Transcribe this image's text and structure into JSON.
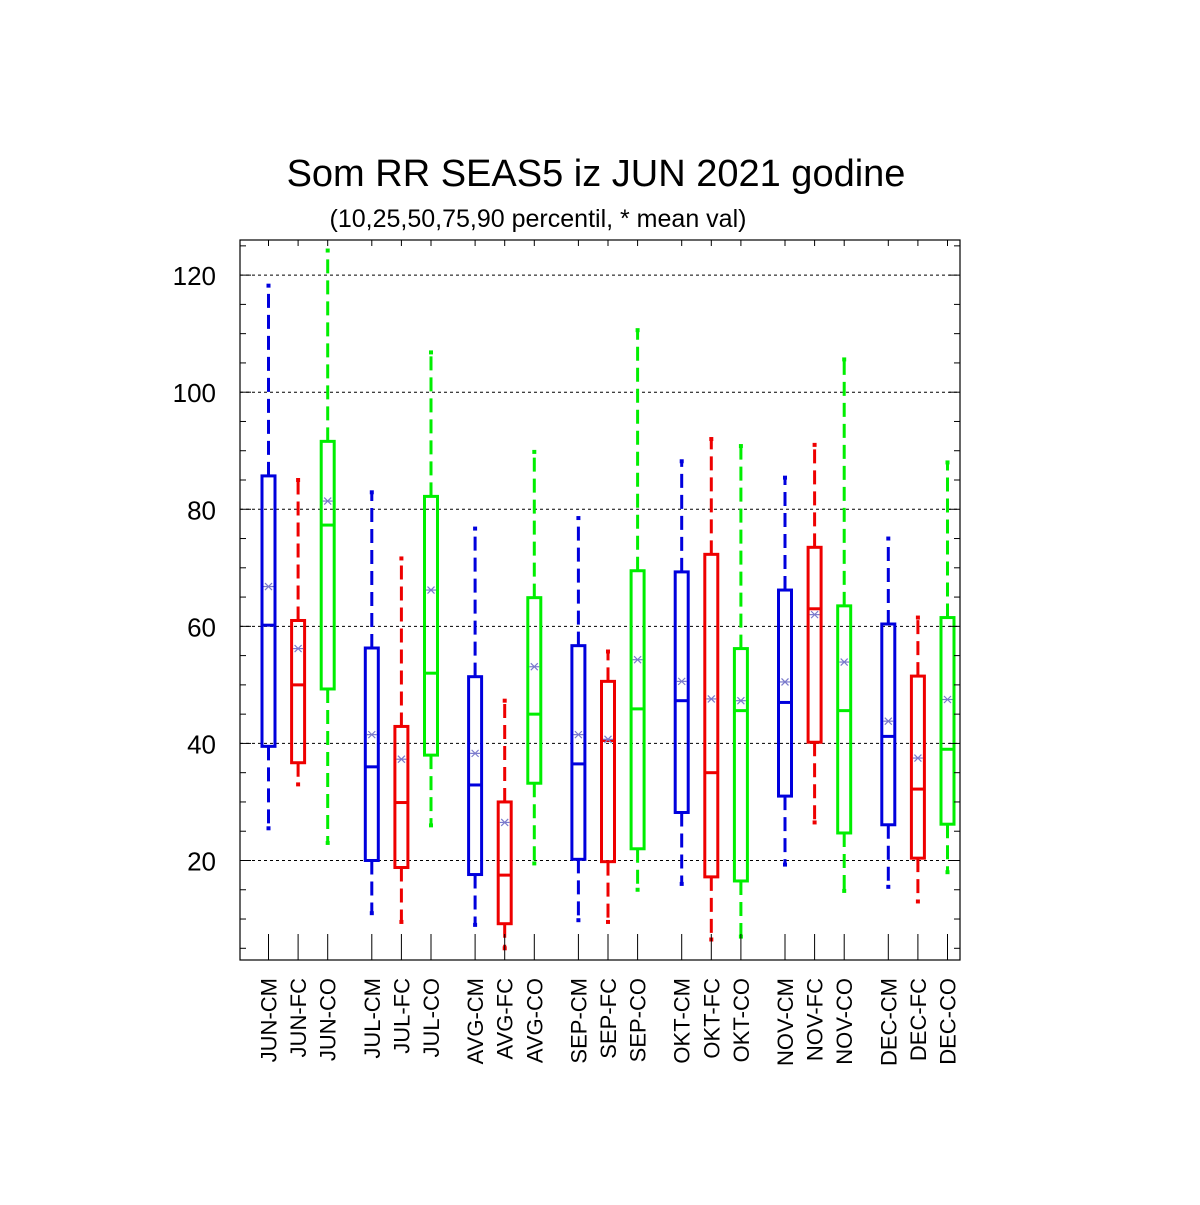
{
  "chart_data": {
    "type": "boxplot",
    "title": "Som RR SEAS5 iz JUN 2021 godine",
    "subtitle": "(10,25,50,75,90 percentil, * mean val)",
    "ylim": [
      3,
      126
    ],
    "yticks": [
      20,
      40,
      60,
      80,
      100,
      120
    ],
    "ytick_labels": [
      "20",
      "40",
      "60",
      "80",
      "100",
      "120"
    ],
    "grid": "horizontal dashed at major ticks",
    "series_colors": {
      "CM": "#0000dd",
      "FC": "#ee0000",
      "CO": "#00ee00"
    },
    "boxes": [
      {
        "label": "JUN-CM",
        "group": "CM",
        "p10": 25.5,
        "p25": 39.5,
        "median": 60.2,
        "p75": 85.7,
        "p90": 118.2,
        "mean": 66.8
      },
      {
        "label": "JUN-FC",
        "group": "FC",
        "p10": 33.0,
        "p25": 36.7,
        "median": 50.0,
        "p75": 61.0,
        "p90": 85.0,
        "mean": 56.2
      },
      {
        "label": "JUN-CO",
        "group": "CO",
        "p10": 23.0,
        "p25": 49.3,
        "median": 77.3,
        "p75": 91.6,
        "p90": 124.2,
        "mean": 81.4
      },
      {
        "label": "JUL-CM",
        "group": "CM",
        "p10": 11.0,
        "p25": 20.0,
        "median": 36.0,
        "p75": 56.3,
        "p90": 82.9,
        "mean": 41.5
      },
      {
        "label": "JUL-FC",
        "group": "FC",
        "p10": 9.5,
        "p25": 18.8,
        "median": 29.9,
        "p75": 42.9,
        "p90": 71.6,
        "mean": 37.3
      },
      {
        "label": "JUL-CO",
        "group": "CO",
        "p10": 26.0,
        "p25": 38.0,
        "median": 52.0,
        "p75": 82.2,
        "p90": 106.8,
        "mean": 66.2
      },
      {
        "label": "AVG-CM",
        "group": "CM",
        "p10": 9.0,
        "p25": 17.6,
        "median": 32.9,
        "p75": 51.4,
        "p90": 76.7,
        "mean": 38.3
      },
      {
        "label": "AVG-FC",
        "group": "FC",
        "p10": 5.0,
        "p25": 9.2,
        "median": 17.5,
        "p75": 30.0,
        "p90": 47.3,
        "mean": 26.5
      },
      {
        "label": "AVG-CO",
        "group": "CO",
        "p10": 19.5,
        "p25": 33.2,
        "median": 45.0,
        "p75": 64.9,
        "p90": 89.8,
        "mean": 53.1
      },
      {
        "label": "SEP-CM",
        "group": "CM",
        "p10": 9.8,
        "p25": 20.2,
        "median": 36.5,
        "p75": 56.7,
        "p90": 78.5,
        "mean": 41.5
      },
      {
        "label": "SEP-FC",
        "group": "FC",
        "p10": 9.5,
        "p25": 19.8,
        "median": 40.5,
        "p75": 50.6,
        "p90": 55.7,
        "mean": 40.7
      },
      {
        "label": "SEP-CO",
        "group": "CO",
        "p10": 15.0,
        "p25": 22.0,
        "median": 45.9,
        "p75": 69.5,
        "p90": 110.6,
        "mean": 54.3
      },
      {
        "label": "OKT-CM",
        "group": "CM",
        "p10": 16.0,
        "p25": 28.2,
        "median": 47.3,
        "p75": 69.3,
        "p90": 88.2,
        "mean": 50.6
      },
      {
        "label": "OKT-FC",
        "group": "FC",
        "p10": 6.5,
        "p25": 17.2,
        "median": 35.0,
        "p75": 72.3,
        "p90": 92.0,
        "mean": 47.6
      },
      {
        "label": "OKT-CO",
        "group": "CO",
        "p10": 7.0,
        "p25": 16.5,
        "median": 45.6,
        "p75": 56.2,
        "p90": 90.8,
        "mean": 47.3
      },
      {
        "label": "NOV-CM",
        "group": "CM",
        "p10": 19.3,
        "p25": 31.0,
        "median": 47.0,
        "p75": 66.2,
        "p90": 85.4,
        "mean": 50.5
      },
      {
        "label": "NOV-FC",
        "group": "FC",
        "p10": 26.5,
        "p25": 40.2,
        "median": 63.0,
        "p75": 73.5,
        "p90": 91.0,
        "mean": 62.0
      },
      {
        "label": "NOV-CO",
        "group": "CO",
        "p10": 14.8,
        "p25": 24.7,
        "median": 45.6,
        "p75": 63.5,
        "p90": 105.6,
        "mean": 53.9
      },
      {
        "label": "DEC-CM",
        "group": "CM",
        "p10": 15.5,
        "p25": 26.1,
        "median": 41.2,
        "p75": 60.4,
        "p90": 75.0,
        "mean": 43.8
      },
      {
        "label": "DEC-FC",
        "group": "FC",
        "p10": 13.0,
        "p25": 20.4,
        "median": 32.2,
        "p75": 51.5,
        "p90": 61.5,
        "mean": 37.5
      },
      {
        "label": "DEC-CO",
        "group": "CO",
        "p10": 18.0,
        "p25": 26.2,
        "median": 39.0,
        "p75": 61.5,
        "p90": 88.0,
        "mean": 47.5
      }
    ]
  }
}
